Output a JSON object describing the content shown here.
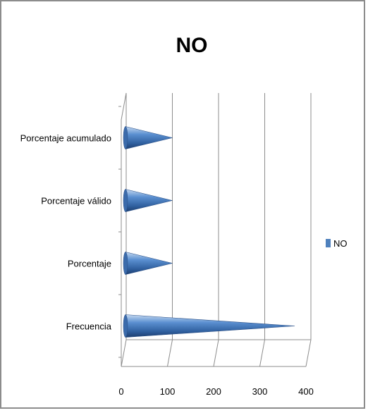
{
  "chart_data": {
    "type": "bar",
    "shape": "cone",
    "orientation": "horizontal",
    "title": "NO",
    "categories": [
      "Frecuencia",
      "Porcentaje",
      "Porcentaje válido",
      "Porcentaje acumulado"
    ],
    "series": [
      {
        "name": "NO",
        "values": [
          365,
          100,
          100,
          100
        ],
        "color": "#4f81bd"
      }
    ],
    "xlim": [
      0,
      400
    ],
    "xticks": [
      "0",
      "100",
      "200",
      "300",
      "400"
    ],
    "grid": true,
    "legend": "right"
  }
}
